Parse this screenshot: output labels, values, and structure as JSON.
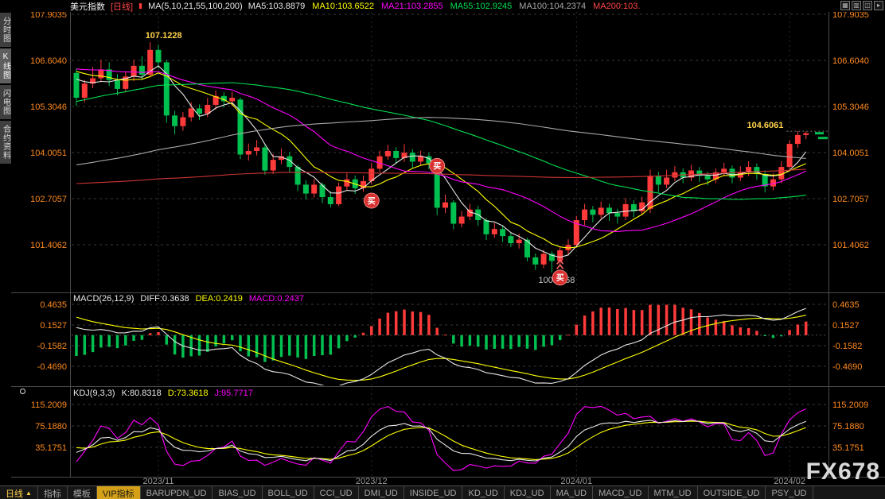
{
  "header": {
    "symbol": "美元指数",
    "period_tag": "[日线]",
    "kline_icon_glyph": "▮",
    "ma_param": "MA(5,10,21,55,100,200)",
    "ma_values": [
      {
        "text": "MA5:103.8879",
        "color": "#e8e8e8"
      },
      {
        "text": "MA10:103.6522",
        "color": "#ffff00"
      },
      {
        "text": "MA21:103.2855",
        "color": "#ff00ff"
      },
      {
        "text": "MA55:102.9245",
        "color": "#00e050"
      },
      {
        "text": "MA100:104.2374",
        "color": "#a8a8a8"
      },
      {
        "text": "MA200:103.",
        "color": "#ff4545"
      }
    ],
    "window_icons": [
      {
        "name": "layout-grid-icon",
        "glyph": "▦"
      },
      {
        "name": "layout-split-icon",
        "glyph": "▥"
      },
      {
        "name": "layout-single-icon",
        "glyph": "◫"
      },
      {
        "name": "layout-next-icon",
        "glyph": "▸"
      }
    ]
  },
  "sidebar": {
    "items": [
      {
        "name": "timeshare-chart",
        "label": "分时图",
        "selected": false
      },
      {
        "name": "kline-chart",
        "label": "K线图",
        "selected": true
      },
      {
        "name": "lightning-chart",
        "label": "闪电图",
        "selected": false
      },
      {
        "name": "contract-info",
        "label": "合约资料",
        "selected": false
      }
    ]
  },
  "macd_panel": {
    "title": "MACD(26,12,9)",
    "values": [
      {
        "text": "DIFF:0.3638",
        "color": "#e8e8e8"
      },
      {
        "text": "DEA:0.2419",
        "color": "#ffff00"
      },
      {
        "text": "MACD:0.2437",
        "color": "#ff00ff"
      }
    ],
    "y_labels": [
      "0.4635",
      "0.1527",
      "-0.1582",
      "-0.4690"
    ]
  },
  "kdj_panel": {
    "title": "KDJ(9,3,3)",
    "values": [
      {
        "text": "K:80.8318",
        "color": "#e8e8e8"
      },
      {
        "text": "D:73.3618",
        "color": "#ffff00"
      },
      {
        "text": "J:95.7717",
        "color": "#ff00ff"
      }
    ],
    "y_labels": [
      "115.2009",
      "75.1880",
      "35.1751"
    ]
  },
  "bottom_bar": {
    "period": "日线",
    "period_arrow": "▲",
    "tabs": [
      {
        "label": "指标",
        "highlight": false
      },
      {
        "label": "模板",
        "highlight": false
      },
      {
        "label": "VIP指标",
        "highlight": true
      },
      {
        "label": "BARUPDN_UD",
        "highlight": false
      },
      {
        "label": "BIAS_UD",
        "highlight": false
      },
      {
        "label": "BOLL_UD",
        "highlight": false
      },
      {
        "label": "CCI_UD",
        "highlight": false
      },
      {
        "label": "DMI_UD",
        "highlight": false
      },
      {
        "label": "INSIDE_UD",
        "highlight": false
      },
      {
        "label": "KD_UD",
        "highlight": false
      },
      {
        "label": "KDJ_UD",
        "highlight": false
      },
      {
        "label": "MA_UD",
        "highlight": false
      },
      {
        "label": "MACD_UD",
        "highlight": false
      },
      {
        "label": "MTM_UD",
        "highlight": false
      },
      {
        "label": "OUTSIDE_UD",
        "highlight": false
      },
      {
        "label": "PSY_UD",
        "highlight": false
      }
    ]
  },
  "watermark": "FX678",
  "colors": {
    "background": "#000000",
    "axis_text": "#ff8a1e",
    "grid": "#3a3a3a",
    "frame": "#4a4a4a",
    "candle_up": "#ff3a3a",
    "candle_down": "#00c050",
    "ma_colors": [
      "#e8e8e8",
      "#ffff00",
      "#ff00ff",
      "#00e050",
      "#a8a8a8",
      "#cc3333"
    ],
    "diff_line": "#e8e8e8",
    "dea_line": "#ffff00",
    "k_line": "#e8e8e8",
    "d_line": "#ffff00",
    "j_line": "#ff00ff",
    "annotation": "#ffd24a",
    "low_label": "#c8c8c8",
    "buy_badge": "#d93030",
    "month_line": "#2c2c2c",
    "date_text": "#9a9a9a"
  },
  "chart_data": {
    "type": "candlestick",
    "symbol": "美元指数",
    "period": "日线",
    "y_axis_labels": [
      "107.9035",
      "106.6040",
      "105.3046",
      "104.0051",
      "102.7057",
      "101.4062"
    ],
    "x_axis_labels": [
      {
        "label": "2023/11",
        "index": 10
      },
      {
        "label": "2023/12",
        "index": 36
      },
      {
        "label": "2024/01",
        "index": 61
      },
      {
        "label": "2024/02",
        "index": 87
      }
    ],
    "ma_periods": [
      5,
      10,
      21,
      55,
      100,
      200
    ],
    "candles": [
      [
        106.25,
        106.38,
        105.32,
        105.55
      ],
      [
        105.55,
        106.05,
        105.42,
        105.95
      ],
      [
        105.95,
        106.42,
        105.82,
        106.1
      ],
      [
        106.1,
        106.62,
        106.0,
        106.35
      ],
      [
        106.35,
        106.55,
        105.88,
        106.05
      ],
      [
        106.05,
        106.22,
        105.62,
        105.8
      ],
      [
        105.8,
        106.3,
        105.7,
        106.15
      ],
      [
        106.15,
        106.62,
        106.02,
        106.45
      ],
      [
        106.45,
        106.72,
        106.05,
        106.2
      ],
      [
        106.2,
        107.12,
        106.12,
        106.9
      ],
      [
        106.9,
        107.05,
        106.38,
        106.55
      ],
      [
        106.55,
        106.62,
        104.84,
        105.05
      ],
      [
        105.05,
        105.18,
        104.52,
        104.75
      ],
      [
        104.75,
        105.15,
        104.62,
        105.0
      ],
      [
        105.0,
        105.42,
        104.88,
        105.25
      ],
      [
        105.25,
        105.36,
        104.92,
        105.1
      ],
      [
        105.1,
        105.55,
        105.0,
        105.35
      ],
      [
        105.35,
        105.76,
        105.22,
        105.6
      ],
      [
        105.6,
        105.7,
        105.28,
        105.45
      ],
      [
        105.45,
        105.72,
        105.32,
        105.55
      ],
      [
        105.5,
        105.56,
        103.82,
        103.95
      ],
      [
        103.95,
        104.26,
        103.78,
        104.05
      ],
      [
        104.05,
        104.36,
        103.92,
        104.15
      ],
      [
        104.15,
        104.22,
        103.38,
        103.5
      ],
      [
        103.5,
        103.96,
        103.4,
        103.8
      ],
      [
        103.8,
        104.12,
        103.68,
        103.9
      ],
      [
        103.9,
        104.02,
        103.44,
        103.6
      ],
      [
        103.6,
        103.66,
        102.92,
        103.1
      ],
      [
        103.1,
        103.22,
        102.68,
        102.85
      ],
      [
        102.85,
        103.26,
        102.74,
        103.1
      ],
      [
        103.1,
        103.16,
        102.58,
        102.75
      ],
      [
        102.75,
        102.92,
        102.46,
        102.55
      ],
      [
        102.55,
        103.16,
        102.5,
        103.05
      ],
      [
        103.05,
        103.42,
        102.94,
        103.25
      ],
      [
        103.25,
        103.36,
        102.84,
        103.0
      ],
      [
        103.0,
        103.36,
        102.9,
        103.2
      ],
      [
        103.2,
        103.72,
        103.1,
        103.55
      ],
      [
        103.55,
        104.06,
        103.46,
        103.9
      ],
      [
        103.9,
        104.22,
        103.8,
        104.05
      ],
      [
        104.05,
        104.16,
        103.68,
        103.85
      ],
      [
        103.85,
        104.24,
        103.74,
        104.0
      ],
      [
        104.0,
        104.1,
        103.58,
        103.75
      ],
      [
        103.75,
        104.06,
        103.64,
        103.9
      ],
      [
        103.9,
        104.0,
        103.54,
        103.7
      ],
      [
        103.7,
        103.82,
        102.24,
        102.45
      ],
      [
        102.45,
        102.82,
        102.3,
        102.6
      ],
      [
        102.6,
        102.66,
        101.84,
        102.0
      ],
      [
        102.0,
        102.36,
        101.9,
        102.2
      ],
      [
        102.2,
        102.56,
        102.1,
        102.4
      ],
      [
        102.4,
        102.5,
        101.94,
        102.1
      ],
      [
        102.1,
        102.16,
        101.54,
        101.7
      ],
      [
        101.7,
        102.02,
        101.6,
        101.85
      ],
      [
        101.85,
        101.96,
        101.48,
        101.65
      ],
      [
        101.65,
        101.76,
        101.34,
        101.45
      ],
      [
        101.45,
        101.72,
        101.3,
        101.55
      ],
      [
        101.55,
        101.6,
        100.94,
        101.05
      ],
      [
        101.05,
        101.16,
        100.7,
        100.85
      ],
      [
        100.85,
        101.26,
        100.74,
        101.15
      ],
      [
        101.15,
        101.22,
        100.62,
        100.95
      ],
      [
        100.95,
        101.36,
        100.8,
        101.25
      ],
      [
        101.25,
        101.56,
        101.1,
        101.4
      ],
      [
        101.4,
        102.22,
        101.34,
        102.1
      ],
      [
        102.1,
        102.56,
        101.96,
        102.4
      ],
      [
        102.4,
        102.5,
        102.04,
        102.25
      ],
      [
        102.25,
        102.62,
        102.14,
        102.45
      ],
      [
        102.45,
        102.56,
        102.08,
        102.3
      ],
      [
        102.3,
        102.42,
        102.0,
        102.2
      ],
      [
        102.2,
        102.72,
        102.1,
        102.55
      ],
      [
        102.55,
        102.66,
        102.18,
        102.35
      ],
      [
        102.35,
        102.76,
        102.24,
        102.6
      ],
      [
        102.42,
        103.52,
        102.3,
        103.35
      ],
      [
        103.35,
        103.46,
        102.88,
        103.1
      ],
      [
        103.1,
        103.52,
        103.0,
        103.3
      ],
      [
        103.3,
        103.62,
        103.2,
        103.45
      ],
      [
        103.45,
        103.56,
        103.14,
        103.3
      ],
      [
        103.3,
        103.66,
        103.2,
        103.5
      ],
      [
        103.5,
        103.6,
        103.18,
        103.35
      ],
      [
        103.35,
        103.46,
        103.08,
        103.25
      ],
      [
        103.25,
        103.56,
        103.14,
        103.45
      ],
      [
        103.45,
        103.72,
        103.34,
        103.55
      ],
      [
        103.55,
        103.64,
        103.14,
        103.3
      ],
      [
        103.3,
        103.62,
        103.2,
        103.45
      ],
      [
        103.45,
        103.76,
        103.34,
        103.6
      ],
      [
        103.6,
        103.7,
        103.24,
        103.4
      ],
      [
        103.4,
        103.5,
        102.88,
        103.05
      ],
      [
        103.05,
        103.42,
        102.94,
        103.25
      ],
      [
        103.25,
        103.76,
        103.14,
        103.6
      ],
      [
        103.6,
        104.36,
        103.54,
        104.25
      ],
      [
        104.25,
        104.61,
        104.14,
        104.5
      ],
      [
        104.5,
        104.6,
        104.38,
        104.55
      ]
    ],
    "prepend_anchors": [
      [
        -200,
        104.3
      ],
      [
        -180,
        101.8
      ],
      [
        -160,
        104.6
      ],
      [
        -140,
        101.9
      ],
      [
        -120,
        101.2
      ],
      [
        -100,
        102.8
      ],
      [
        -80,
        99.9
      ],
      [
        -60,
        102.6
      ],
      [
        -40,
        104.8
      ],
      [
        -20,
        106.3
      ],
      [
        -8,
        106.6
      ],
      [
        -1,
        106.1
      ]
    ],
    "buy_markers": [
      {
        "index": 36,
        "price": 102.65,
        "label": "买",
        "chevrons": false
      },
      {
        "index": 44,
        "price": 103.63,
        "label": "买",
        "chevrons": false
      },
      {
        "index": 59,
        "price": 100.48,
        "label": "买",
        "chevrons": true
      }
    ],
    "annotations": {
      "peak": {
        "text": "107.1228",
        "index": 9
      },
      "recent_high": {
        "text": "104.6061",
        "index": 88
      },
      "low": {
        "text": "100.6168",
        "index": 58
      }
    },
    "last_price": 104.55,
    "macd": {
      "params": [
        26,
        12,
        9
      ],
      "diff": 0.3638,
      "dea": 0.2419,
      "macd": 0.2437,
      "y_ticks": [
        0.4635,
        0.1527,
        -0.1582,
        -0.469
      ]
    },
    "kdj": {
      "params": [
        9,
        3,
        3
      ],
      "k": 80.8318,
      "d": 73.3618,
      "j": 95.7717,
      "y_ticks": [
        115.2009,
        75.188,
        35.1751
      ]
    }
  }
}
